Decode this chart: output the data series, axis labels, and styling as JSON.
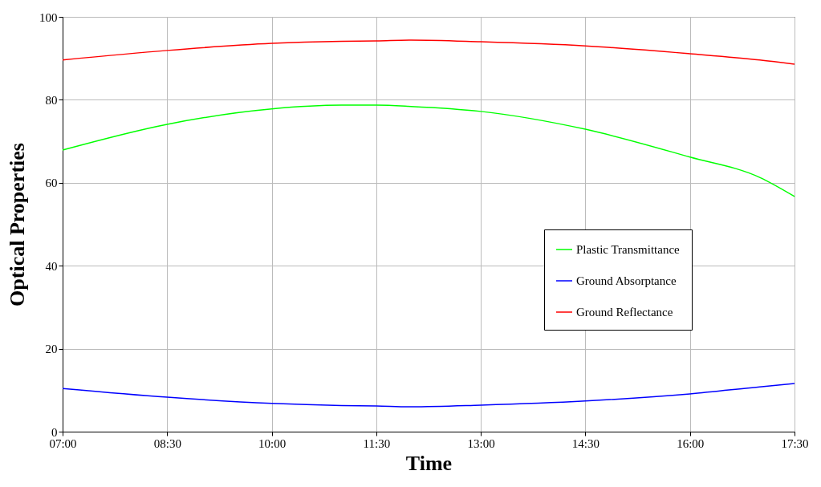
{
  "chart_data": {
    "type": "line",
    "xlabel": "Time",
    "ylabel": "Optical Properties",
    "x": [
      7,
      8.5,
      10,
      11,
      11.5,
      12,
      13,
      14.5,
      16,
      17,
      17.5
    ],
    "xlim": [
      7,
      17.5
    ],
    "xticks": [
      {
        "value": 7,
        "label": "07:00"
      },
      {
        "value": 8.5,
        "label": "08:30"
      },
      {
        "value": 10,
        "label": "10:00"
      },
      {
        "value": 11.5,
        "label": "11:30"
      },
      {
        "value": 13,
        "label": "13:00"
      },
      {
        "value": 14.5,
        "label": "14:30"
      },
      {
        "value": 16,
        "label": "16:00"
      },
      {
        "value": 17.5,
        "label": "17:30"
      }
    ],
    "ylim": [
      0,
      100
    ],
    "yticks": [
      0,
      20,
      40,
      60,
      80,
      100
    ],
    "series": [
      {
        "name": "Plastic Transmittance",
        "color": "#00ff00",
        "values": [
          67.9,
          74.1,
          77.8,
          78.7,
          78.7,
          78.4,
          77.2,
          72.9,
          66.2,
          61.3,
          56.7
        ]
      },
      {
        "name": "Ground Absorptance",
        "color": "#0000ff",
        "values": [
          10.4,
          8.3,
          6.8,
          6.3,
          6.2,
          6.0,
          6.4,
          7.4,
          9.1,
          10.8,
          11.6
        ]
      },
      {
        "name": "Ground Reflectance",
        "color": "#ff0000",
        "values": [
          89.6,
          91.9,
          93.6,
          94.1,
          94.2,
          94.4,
          94.0,
          93.0,
          91.1,
          89.6,
          88.6
        ]
      }
    ],
    "grid": true,
    "legend": "right",
    "marker": "none",
    "line_style": "solid"
  }
}
